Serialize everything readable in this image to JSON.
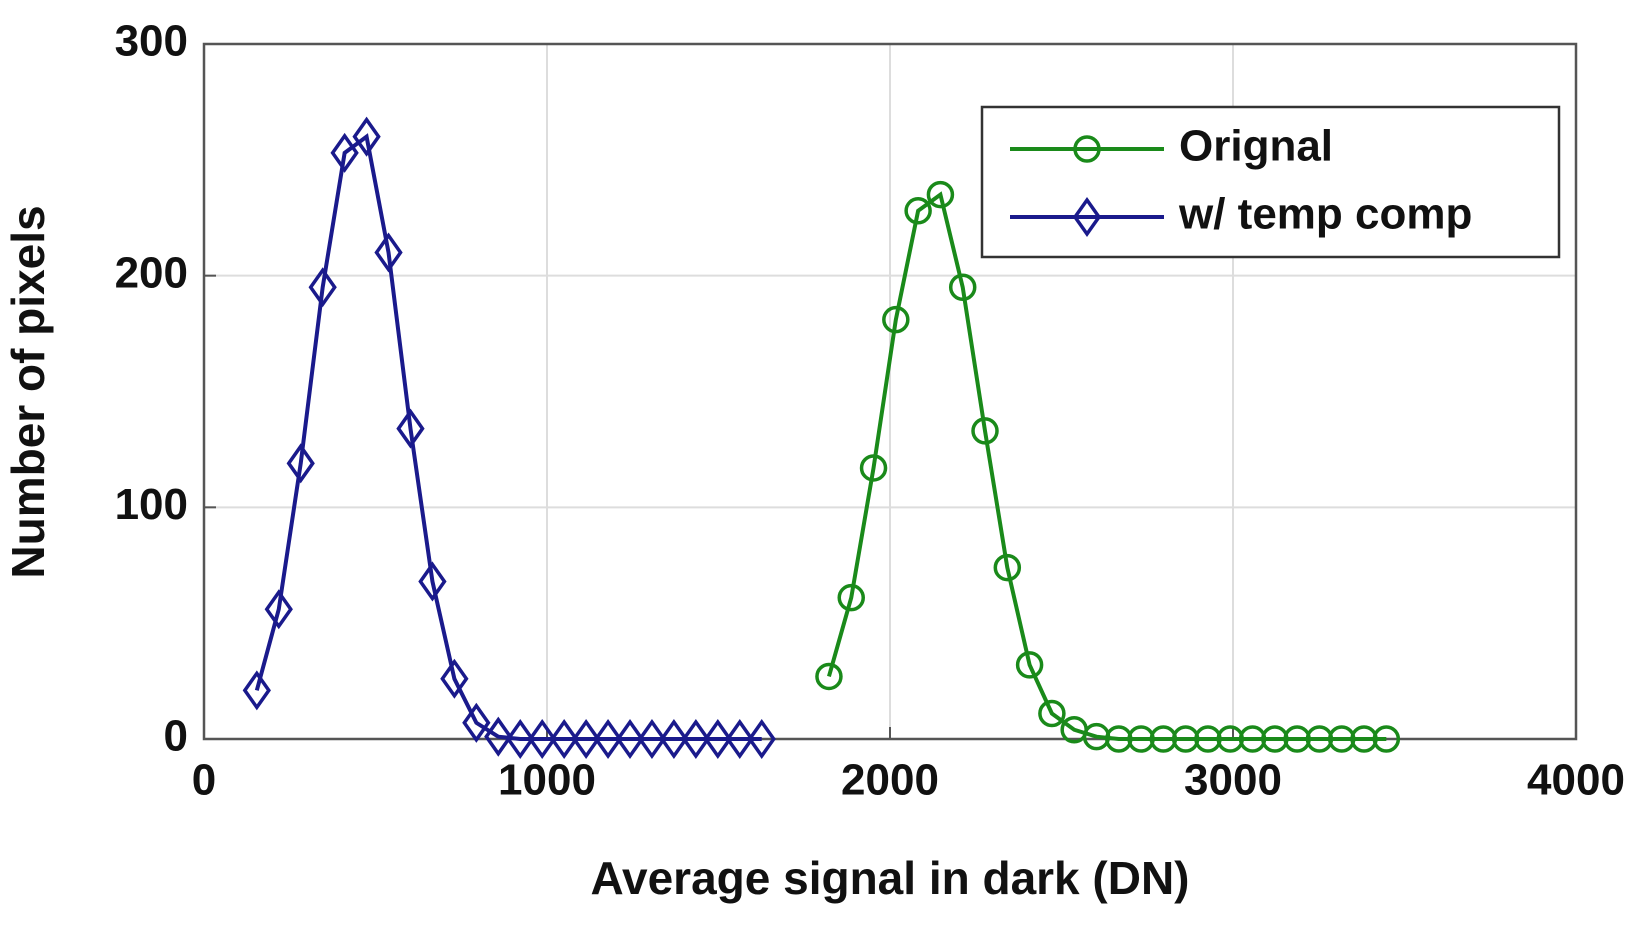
{
  "chart_data": {
    "type": "line",
    "xlabel": "Average signal in dark (DN)",
    "ylabel": "Number of pixels",
    "xlim": [
      0,
      4000
    ],
    "xticks": [
      0,
      1000,
      2000,
      3000,
      4000
    ],
    "ylim": [
      0,
      300
    ],
    "yticks": [
      0,
      100,
      200,
      300
    ],
    "grid": true,
    "legend": "upper right",
    "series": [
      {
        "name": "Orignal",
        "color": "#1a8a1a",
        "marker": "circle",
        "x": [
          1822,
          1887,
          1952,
          2017,
          2082,
          2147,
          2212,
          2277,
          2342,
          2407,
          2472,
          2537,
          2602,
          2667,
          2732,
          2797,
          2862,
          2927,
          2992,
          3057,
          3122,
          3187,
          3252,
          3317,
          3382,
          3447
        ],
        "values": [
          27,
          61,
          117,
          181,
          228,
          235,
          195,
          133,
          74,
          32,
          11,
          4,
          1,
          0,
          0,
          0,
          0,
          0,
          0,
          0,
          0,
          0,
          0,
          0,
          0,
          0
        ]
      },
      {
        "name": "w/ temp comp",
        "color": "#1a1a8c",
        "marker": "diamond",
        "x": [
          154,
          218,
          282,
          346,
          410,
          474,
          538,
          602,
          666,
          730,
          794,
          858,
          922,
          986,
          1050,
          1114,
          1178,
          1242,
          1306,
          1370,
          1434,
          1498,
          1562,
          1626
        ],
        "values": [
          21,
          56,
          119,
          195,
          253,
          260,
          210,
          134,
          68,
          26,
          7,
          1,
          0,
          0,
          0,
          0,
          0,
          0,
          0,
          0,
          0,
          0,
          0,
          0
        ]
      }
    ]
  }
}
